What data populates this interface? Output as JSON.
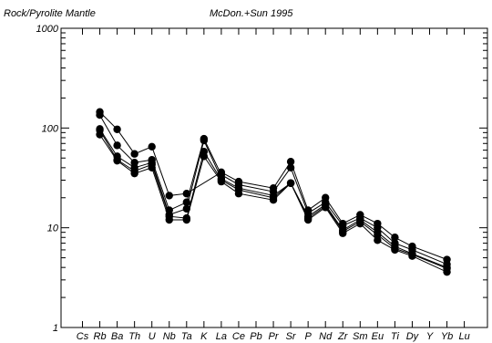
{
  "chart_data": {
    "type": "line",
    "title_left": "Rock/Pyrolite Mantle",
    "title_center": "McDon.+Sun 1995",
    "y_scale": "log",
    "ylim": [
      1,
      1000
    ],
    "y_ticks": [
      1,
      10,
      100,
      1000
    ],
    "y_tick_labels": [
      "1",
      "10",
      "100",
      "1000"
    ],
    "grid": false,
    "marker": "filled-circle",
    "line_color": "#000000",
    "categories": [
      "Cs",
      "Rb",
      "Ba",
      "Th",
      "U",
      "Nb",
      "Ta",
      "K",
      "La",
      "Ce",
      "Pb",
      "Pr",
      "Sr",
      "P",
      "Nd",
      "Zr",
      "Sm",
      "Eu",
      "Ti",
      "Dy",
      "Y",
      "Yb",
      "Lu"
    ],
    "series": [
      {
        "values": [
          null,
          145,
          97,
          55,
          65,
          21,
          22,
          null,
          36,
          29,
          null,
          25,
          46,
          15,
          20,
          11,
          13.5,
          11,
          8,
          6.5,
          null,
          4.8,
          null
        ],
        "skip_over": [
          "K"
        ]
      },
      {
        "values": [
          null,
          135,
          67,
          45,
          48,
          15,
          18,
          78,
          34,
          27,
          null,
          23,
          40,
          14,
          18,
          10.5,
          12.5,
          10,
          7,
          6,
          null,
          4.3,
          null
        ]
      },
      {
        "values": [
          null,
          98,
          52,
          40,
          45,
          13.5,
          15.5,
          75,
          31,
          25,
          null,
          21,
          28,
          13,
          17,
          9.5,
          12,
          9,
          6.5,
          5.5,
          null,
          4.0,
          null
        ]
      },
      {
        "values": [
          null,
          95,
          48,
          37,
          43,
          13,
          12.5,
          58,
          30,
          24,
          null,
          20,
          28,
          12.5,
          16.5,
          9.2,
          11.5,
          8.5,
          6.2,
          5.4,
          null,
          3.9,
          null
        ]
      },
      {
        "values": [
          null,
          86,
          47,
          35,
          40,
          12,
          12,
          52,
          29,
          22,
          null,
          19,
          28,
          12,
          16,
          8.8,
          11,
          7.5,
          6,
          5.2,
          null,
          3.6,
          null
        ]
      }
    ]
  }
}
